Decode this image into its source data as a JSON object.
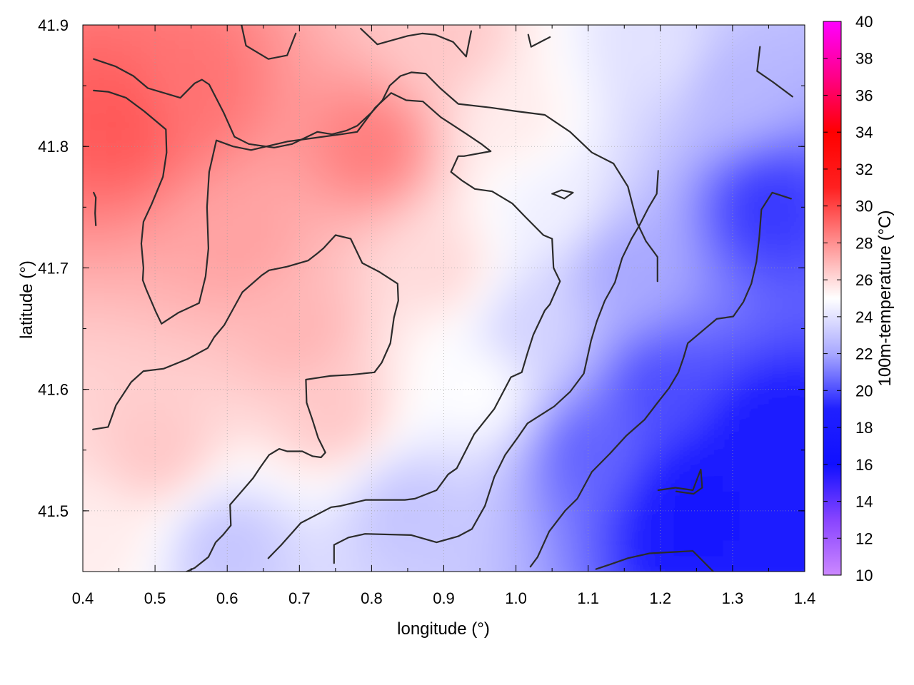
{
  "chart_data": {
    "type": "heatmap",
    "xlabel": "longitude (°)",
    "ylabel": "latitude (°)",
    "colorbar_label": "100m-temperature (°C)",
    "xlim": [
      0.4,
      1.4
    ],
    "ylim": [
      41.45,
      41.9
    ],
    "xticks": [
      "0.4",
      "0.5",
      "0.6",
      "0.7",
      "0.8",
      "0.9",
      "1.0",
      "1.1",
      "1.2",
      "1.3",
      "1.4"
    ],
    "yticks": [
      "41.5",
      "41.6",
      "41.7",
      "41.8",
      "41.9"
    ],
    "colorbar_range": [
      10,
      40
    ],
    "colorbar_ticks": [
      "10",
      "12",
      "14",
      "16",
      "18",
      "20",
      "22",
      "24",
      "26",
      "28",
      "30",
      "32",
      "34",
      "36",
      "38",
      "40"
    ],
    "colorscale": [
      {
        "value": 10,
        "color": "#cc88ff"
      },
      {
        "value": 13,
        "color": "#8844ff"
      },
      {
        "value": 16,
        "color": "#1010ff"
      },
      {
        "value": 19,
        "color": "#2020ff"
      },
      {
        "value": 22,
        "color": "#a8a8ff"
      },
      {
        "value": 25,
        "color": "#ffffff"
      },
      {
        "value": 28,
        "color": "#ff9090"
      },
      {
        "value": 31,
        "color": "#ff2020"
      },
      {
        "value": 34,
        "color": "#ff0000"
      },
      {
        "value": 37,
        "color": "#ff0088"
      },
      {
        "value": 40,
        "color": "#ff00ff"
      }
    ],
    "grid": true,
    "temperature_field_samples": [
      {
        "lon": 0.45,
        "lat": 41.82,
        "value": 29.5
      },
      {
        "lon": 0.55,
        "lat": 41.85,
        "value": 28.8
      },
      {
        "lon": 0.62,
        "lat": 41.72,
        "value": 27.5
      },
      {
        "lon": 0.7,
        "lat": 41.65,
        "value": 27.0
      },
      {
        "lon": 0.8,
        "lat": 41.8,
        "value": 28.5
      },
      {
        "lon": 0.75,
        "lat": 41.58,
        "value": 26.5
      },
      {
        "lon": 0.5,
        "lat": 41.55,
        "value": 26.5
      },
      {
        "lon": 0.9,
        "lat": 41.7,
        "value": 26.0
      },
      {
        "lon": 0.95,
        "lat": 41.6,
        "value": 25.0
      },
      {
        "lon": 1.0,
        "lat": 41.82,
        "value": 25.5
      },
      {
        "lon": 1.05,
        "lat": 41.75,
        "value": 24.5
      },
      {
        "lon": 1.02,
        "lat": 41.65,
        "value": 23.5
      },
      {
        "lon": 1.1,
        "lat": 41.55,
        "value": 20.5
      },
      {
        "lon": 1.2,
        "lat": 41.6,
        "value": 20.0
      },
      {
        "lon": 1.25,
        "lat": 41.5,
        "value": 17.5
      },
      {
        "lon": 1.35,
        "lat": 41.55,
        "value": 18.0
      },
      {
        "lon": 1.35,
        "lat": 41.75,
        "value": 19.5
      },
      {
        "lon": 1.3,
        "lat": 41.85,
        "value": 22.5
      },
      {
        "lon": 1.2,
        "lat": 41.88,
        "value": 24.0
      },
      {
        "lon": 0.85,
        "lat": 41.5,
        "value": 23.0
      },
      {
        "lon": 0.6,
        "lat": 41.47,
        "value": 23.0
      },
      {
        "lon": 0.42,
        "lat": 41.48,
        "value": 25.5
      },
      {
        "lon": 0.9,
        "lat": 41.89,
        "value": 26.5
      },
      {
        "lon": 1.15,
        "lat": 41.7,
        "value": 22.0
      }
    ],
    "contour_lines": [
      [
        [
          0.415,
          41.872
        ],
        [
          0.445,
          41.866
        ],
        [
          0.47,
          41.858
        ],
        [
          0.49,
          41.848
        ],
        [
          0.535,
          41.84
        ],
        [
          0.555,
          41.852
        ],
        [
          0.565,
          41.855
        ],
        [
          0.575,
          41.851
        ],
        [
          0.595,
          41.828
        ],
        [
          0.61,
          41.808
        ],
        [
          0.63,
          41.802
        ],
        [
          0.665,
          41.799
        ],
        [
          0.69,
          41.802
        ],
        [
          0.725,
          41.812
        ],
        [
          0.745,
          41.81
        ],
        [
          0.765,
          41.813
        ],
        [
          0.78,
          41.817
        ],
        [
          0.8,
          41.828
        ],
        [
          0.815,
          41.838
        ],
        [
          0.825,
          41.85
        ],
        [
          0.84,
          41.858
        ],
        [
          0.855,
          41.861
        ],
        [
          0.875,
          41.86
        ],
        [
          0.895,
          41.848
        ],
        [
          0.92,
          41.835
        ],
        [
          0.965,
          41.832
        ],
        [
          1.0,
          41.829
        ],
        [
          1.04,
          41.826
        ],
        [
          1.075,
          41.812
        ],
        [
          1.105,
          41.795
        ],
        [
          1.135,
          41.786
        ],
        [
          1.155,
          41.767
        ],
        [
          1.168,
          41.737
        ],
        [
          1.18,
          41.722
        ],
        [
          1.196,
          41.709
        ],
        [
          1.196,
          41.689
        ]
      ],
      [
        [
          0.415,
          41.846
        ],
        [
          0.435,
          41.845
        ],
        [
          0.46,
          41.84
        ],
        [
          0.485,
          41.829
        ],
        [
          0.515,
          41.814
        ],
        [
          0.516,
          41.795
        ],
        [
          0.511,
          41.775
        ],
        [
          0.495,
          41.752
        ],
        [
          0.484,
          41.738
        ],
        [
          0.481,
          41.72
        ],
        [
          0.484,
          41.7
        ],
        [
          0.483,
          41.69
        ],
        [
          0.488,
          41.682
        ],
        [
          0.501,
          41.664
        ],
        [
          0.509,
          41.654
        ],
        [
          0.532,
          41.663
        ],
        [
          0.561,
          41.671
        ],
        [
          0.57,
          41.693
        ],
        [
          0.574,
          41.716
        ],
        [
          0.572,
          41.75
        ],
        [
          0.575,
          41.779
        ],
        [
          0.585,
          41.805
        ],
        [
          0.608,
          41.8
        ],
        [
          0.633,
          41.797
        ],
        [
          0.683,
          41.804
        ],
        [
          0.708,
          41.806
        ],
        [
          0.758,
          41.81
        ],
        [
          0.78,
          41.812
        ],
        [
          0.805,
          41.832
        ],
        [
          0.827,
          41.844
        ],
        [
          0.848,
          41.838
        ],
        [
          0.871,
          41.837
        ],
        [
          0.896,
          41.824
        ],
        [
          0.932,
          41.81
        ],
        [
          0.952,
          41.802
        ],
        [
          0.965,
          41.796
        ],
        [
          0.928,
          41.792
        ],
        [
          0.92,
          41.792
        ],
        [
          0.91,
          41.779
        ],
        [
          0.925,
          41.772
        ],
        [
          0.943,
          41.765
        ],
        [
          0.967,
          41.763
        ],
        [
          0.995,
          41.753
        ],
        [
          1.013,
          41.742
        ],
        [
          1.038,
          41.727
        ],
        [
          1.05,
          41.724
        ],
        [
          1.052,
          41.7
        ],
        [
          1.061,
          41.689
        ],
        [
          1.047,
          41.67
        ],
        [
          1.04,
          41.665
        ],
        [
          1.024,
          41.645
        ],
        [
          1.016,
          41.63
        ],
        [
          1.008,
          41.614
        ],
        [
          0.993,
          41.61
        ],
        [
          0.97,
          41.584
        ],
        [
          0.942,
          41.563
        ],
        [
          0.918,
          41.535
        ],
        [
          0.906,
          41.53
        ],
        [
          0.89,
          41.517
        ],
        [
          0.86,
          41.51
        ],
        [
          0.846,
          41.509
        ],
        [
          0.792,
          41.509
        ],
        [
          0.757,
          41.504
        ],
        [
          0.744,
          41.503
        ],
        [
          0.702,
          41.49
        ],
        [
          0.675,
          41.472
        ],
        [
          0.657,
          41.461
        ]
      ],
      [
        [
          0.414,
          41.567
        ],
        [
          0.435,
          41.569
        ],
        [
          0.446,
          41.587
        ],
        [
          0.467,
          41.606
        ],
        [
          0.484,
          41.615
        ],
        [
          0.512,
          41.617
        ],
        [
          0.545,
          41.625
        ],
        [
          0.573,
          41.634
        ],
        [
          0.582,
          41.643
        ],
        [
          0.596,
          41.653
        ],
        [
          0.621,
          41.68
        ],
        [
          0.648,
          41.694
        ],
        [
          0.658,
          41.698
        ],
        [
          0.683,
          41.701
        ],
        [
          0.712,
          41.706
        ],
        [
          0.725,
          41.712
        ],
        [
          0.733,
          41.716
        ],
        [
          0.75,
          41.727
        ],
        [
          0.771,
          41.724
        ],
        [
          0.787,
          41.704
        ],
        [
          0.81,
          41.697
        ],
        [
          0.836,
          41.687
        ],
        [
          0.837,
          41.673
        ],
        [
          0.831,
          41.659
        ],
        [
          0.826,
          41.638
        ],
        [
          0.814,
          41.622
        ],
        [
          0.804,
          41.614
        ],
        [
          0.772,
          41.612
        ],
        [
          0.742,
          41.611
        ],
        [
          0.709,
          41.608
        ],
        [
          0.71,
          41.589
        ],
        [
          0.718,
          41.575
        ],
        [
          0.726,
          41.56
        ],
        [
          0.736,
          41.548
        ],
        [
          0.73,
          41.544
        ],
        [
          0.718,
          41.545
        ],
        [
          0.704,
          41.549
        ],
        [
          0.683,
          41.549
        ],
        [
          0.672,
          41.551
        ],
        [
          0.658,
          41.546
        ],
        [
          0.646,
          41.536
        ],
        [
          0.636,
          41.527
        ],
        [
          0.62,
          41.516
        ],
        [
          0.604,
          41.505
        ],
        [
          0.605,
          41.488
        ],
        [
          0.594,
          41.48
        ],
        [
          0.584,
          41.474
        ],
        [
          0.574,
          41.462
        ],
        [
          0.555,
          41.453
        ],
        [
          0.533,
          41.447
        ],
        [
          0.523,
          41.444
        ]
      ],
      [
        [
          0.748,
          41.457
        ],
        [
          0.748,
          41.472
        ],
        [
          0.768,
          41.478
        ],
        [
          0.791,
          41.481
        ],
        [
          0.855,
          41.48
        ],
        [
          0.89,
          41.474
        ],
        [
          0.92,
          41.479
        ],
        [
          0.939,
          41.485
        ],
        [
          0.957,
          41.504
        ],
        [
          0.97,
          41.528
        ],
        [
          0.985,
          41.546
        ],
        [
          1.002,
          41.56
        ],
        [
          1.016,
          41.572
        ],
        [
          1.053,
          41.586
        ],
        [
          1.075,
          41.598
        ],
        [
          1.094,
          41.613
        ],
        [
          1.104,
          41.64
        ],
        [
          1.112,
          41.656
        ],
        [
          1.123,
          41.673
        ],
        [
          1.137,
          41.688
        ],
        [
          1.147,
          41.708
        ],
        [
          1.16,
          41.724
        ],
        [
          1.17,
          41.734
        ],
        [
          1.184,
          41.75
        ],
        [
          1.195,
          41.761
        ],
        [
          1.197,
          41.78
        ]
      ],
      [
        [
          1.02,
          41.454
        ],
        [
          1.03,
          41.462
        ],
        [
          1.046,
          41.483
        ],
        [
          1.068,
          41.5
        ],
        [
          1.085,
          41.51
        ],
        [
          1.105,
          41.532
        ],
        [
          1.13,
          41.547
        ],
        [
          1.153,
          41.562
        ],
        [
          1.178,
          41.575
        ],
        [
          1.196,
          41.589
        ],
        [
          1.212,
          41.601
        ],
        [
          1.225,
          41.614
        ],
        [
          1.232,
          41.626
        ],
        [
          1.238,
          41.638
        ],
        [
          1.256,
          41.647
        ],
        [
          1.278,
          41.658
        ],
        [
          1.301,
          41.66
        ],
        [
          1.315,
          41.672
        ],
        [
          1.326,
          41.687
        ],
        [
          1.333,
          41.705
        ],
        [
          1.337,
          41.725
        ],
        [
          1.34,
          41.748
        ],
        [
          1.355,
          41.762
        ],
        [
          1.381,
          41.757
        ]
      ],
      [
        [
          1.111,
          41.452
        ],
        [
          1.131,
          41.456
        ],
        [
          1.155,
          41.461
        ],
        [
          1.185,
          41.465
        ],
        [
          1.245,
          41.467
        ],
        [
          1.275,
          41.449
        ]
      ],
      [
        [
          1.197,
          41.517
        ],
        [
          1.221,
          41.519
        ],
        [
          1.245,
          41.517
        ],
        [
          1.256,
          41.534
        ],
        [
          1.258,
          41.519
        ],
        [
          1.246,
          41.514
        ],
        [
          1.222,
          41.516
        ]
      ],
      [
        [
          1.05,
          41.761
        ],
        [
          1.063,
          41.764
        ],
        [
          1.079,
          41.762
        ],
        [
          1.067,
          41.757
        ],
        [
          1.051,
          41.761
        ]
      ],
      [
        [
          0.415,
          41.762
        ],
        [
          0.418,
          41.758
        ],
        [
          0.417,
          41.745
        ],
        [
          0.418,
          41.735
        ]
      ],
      [
        [
          0.618,
          41.905
        ],
        [
          0.626,
          41.883
        ],
        [
          0.657,
          41.872
        ],
        [
          0.683,
          41.875
        ],
        [
          0.695,
          41.893
        ]
      ],
      [
        [
          0.785,
          41.897
        ],
        [
          0.808,
          41.884
        ],
        [
          0.85,
          41.891
        ],
        [
          0.87,
          41.893
        ],
        [
          0.888,
          41.892
        ],
        [
          0.913,
          41.886
        ],
        [
          0.931,
          41.874
        ],
        [
          0.938,
          41.895
        ]
      ],
      [
        [
          1.017,
          41.892
        ],
        [
          1.021,
          41.882
        ],
        [
          1.047,
          41.89
        ]
      ],
      [
        [
          1.338,
          41.882
        ],
        [
          1.334,
          41.862
        ],
        [
          1.356,
          41.853
        ],
        [
          1.383,
          41.841
        ]
      ]
    ]
  }
}
